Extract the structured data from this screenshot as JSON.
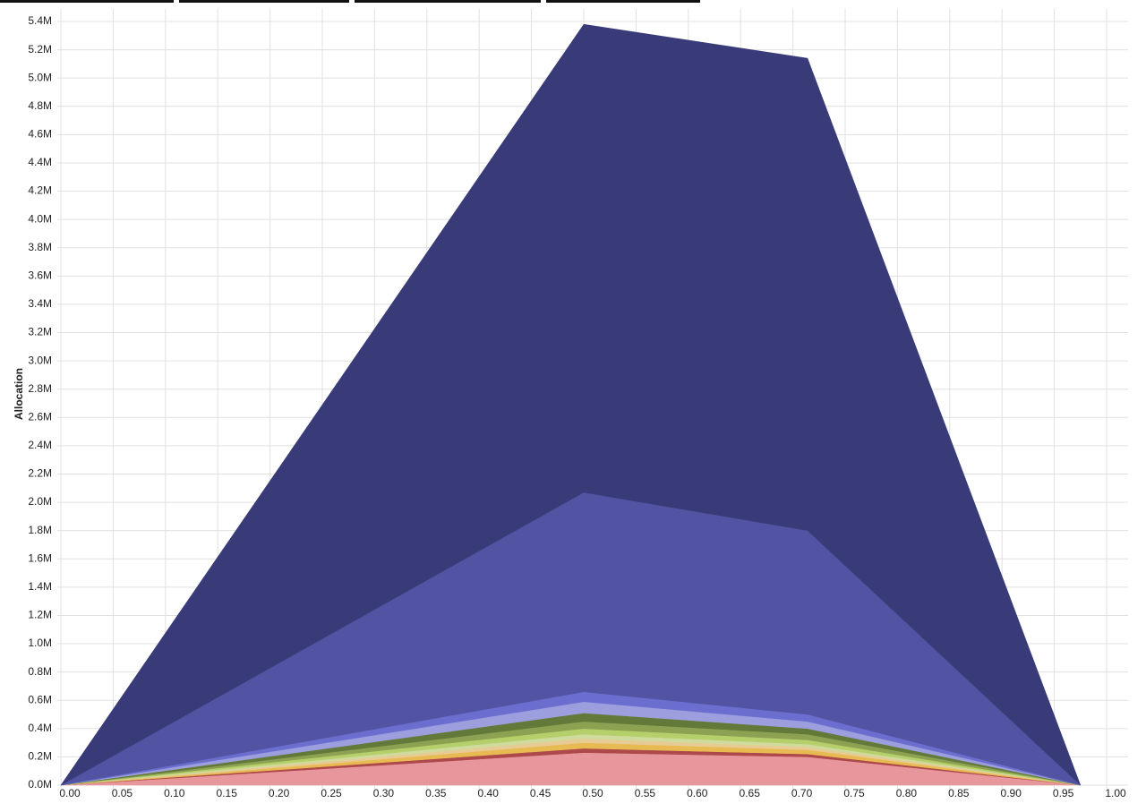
{
  "chart_data": {
    "type": "stacked-area",
    "y_label": "Allocation",
    "x": [
      0,
      0.5,
      0.714,
      0.975
    ],
    "xlim": [
      0,
      1
    ],
    "xticks": [
      {
        "value": 0,
        "label": "0.00"
      },
      {
        "value": 0.05,
        "label": "0.05"
      },
      {
        "value": 0.1,
        "label": "0.10"
      },
      {
        "value": 0.15,
        "label": "0.15"
      },
      {
        "value": 0.2,
        "label": "0.20"
      },
      {
        "value": 0.25,
        "label": "0.25"
      },
      {
        "value": 0.3,
        "label": "0.30"
      },
      {
        "value": 0.35,
        "label": "0.35"
      },
      {
        "value": 0.4,
        "label": "0.40"
      },
      {
        "value": 0.45,
        "label": "0.45"
      },
      {
        "value": 0.5,
        "label": "0.50"
      },
      {
        "value": 0.55,
        "label": "0.55"
      },
      {
        "value": 0.6,
        "label": "0.60"
      },
      {
        "value": 0.65,
        "label": "0.65"
      },
      {
        "value": 0.7,
        "label": "0.70"
      },
      {
        "value": 0.75,
        "label": "0.75"
      },
      {
        "value": 0.8,
        "label": "0.80"
      },
      {
        "value": 0.85,
        "label": "0.85"
      },
      {
        "value": 0.9,
        "label": "0.90"
      },
      {
        "value": 0.95,
        "label": "0.95"
      },
      {
        "value": 1,
        "label": "1.00"
      }
    ],
    "ylim": [
      0,
      5400000
    ],
    "yticks": [
      {
        "value": 0,
        "label": "0.0M"
      },
      {
        "value": 200000,
        "label": "0.2M"
      },
      {
        "value": 400000,
        "label": "0.4M"
      },
      {
        "value": 600000,
        "label": "0.6M"
      },
      {
        "value": 800000,
        "label": "0.8M"
      },
      {
        "value": 1000000,
        "label": "1.0M"
      },
      {
        "value": 1200000,
        "label": "1.2M"
      },
      {
        "value": 1400000,
        "label": "1.4M"
      },
      {
        "value": 1600000,
        "label": "1.6M"
      },
      {
        "value": 1800000,
        "label": "1.8M"
      },
      {
        "value": 2000000,
        "label": "2.0M"
      },
      {
        "value": 2200000,
        "label": "2.2M"
      },
      {
        "value": 2400000,
        "label": "2.4M"
      },
      {
        "value": 2600000,
        "label": "2.6M"
      },
      {
        "value": 2800000,
        "label": "2.8M"
      },
      {
        "value": 3000000,
        "label": "3.0M"
      },
      {
        "value": 3200000,
        "label": "3.2M"
      },
      {
        "value": 3400000,
        "label": "3.4M"
      },
      {
        "value": 3600000,
        "label": "3.6M"
      },
      {
        "value": 3800000,
        "label": "3.8M"
      },
      {
        "value": 4000000,
        "label": "4.0M"
      },
      {
        "value": 4200000,
        "label": "4.2M"
      },
      {
        "value": 4400000,
        "label": "4.4M"
      },
      {
        "value": 4600000,
        "label": "4.6M"
      },
      {
        "value": 4800000,
        "label": "4.8M"
      },
      {
        "value": 5000000,
        "label": "5.0M"
      },
      {
        "value": 5200000,
        "label": "5.2M"
      },
      {
        "value": 5400000,
        "label": "5.4M"
      }
    ],
    "grid": true,
    "series": [
      {
        "color": "#e7969c",
        "values": [
          0,
          230000,
          200000,
          0
        ]
      },
      {
        "color": "#ad494a",
        "values": [
          0,
          30000,
          20000,
          0
        ]
      },
      {
        "color": "#e7ba52",
        "values": [
          0,
          40000,
          30000,
          0
        ]
      },
      {
        "color": "#e7cb94",
        "values": [
          0,
          30000,
          20000,
          0
        ]
      },
      {
        "color": "#cedb9c",
        "values": [
          0,
          30000,
          20000,
          0
        ]
      },
      {
        "color": "#b5cf6b",
        "values": [
          0,
          40000,
          30000,
          0
        ]
      },
      {
        "color": "#8ca252",
        "values": [
          0,
          50000,
          40000,
          0
        ]
      },
      {
        "color": "#637939",
        "values": [
          0,
          60000,
          40000,
          0
        ]
      },
      {
        "color": "#9c9ede",
        "values": [
          0,
          80000,
          50000,
          0
        ]
      },
      {
        "color": "#6b6ecf",
        "values": [
          0,
          70000,
          50000,
          0
        ]
      },
      {
        "color": "#5254a3",
        "values": [
          0,
          1410000,
          1300000,
          0
        ]
      },
      {
        "color": "#393b79",
        "values": [
          0,
          3310000,
          3340000,
          0
        ]
      }
    ]
  }
}
